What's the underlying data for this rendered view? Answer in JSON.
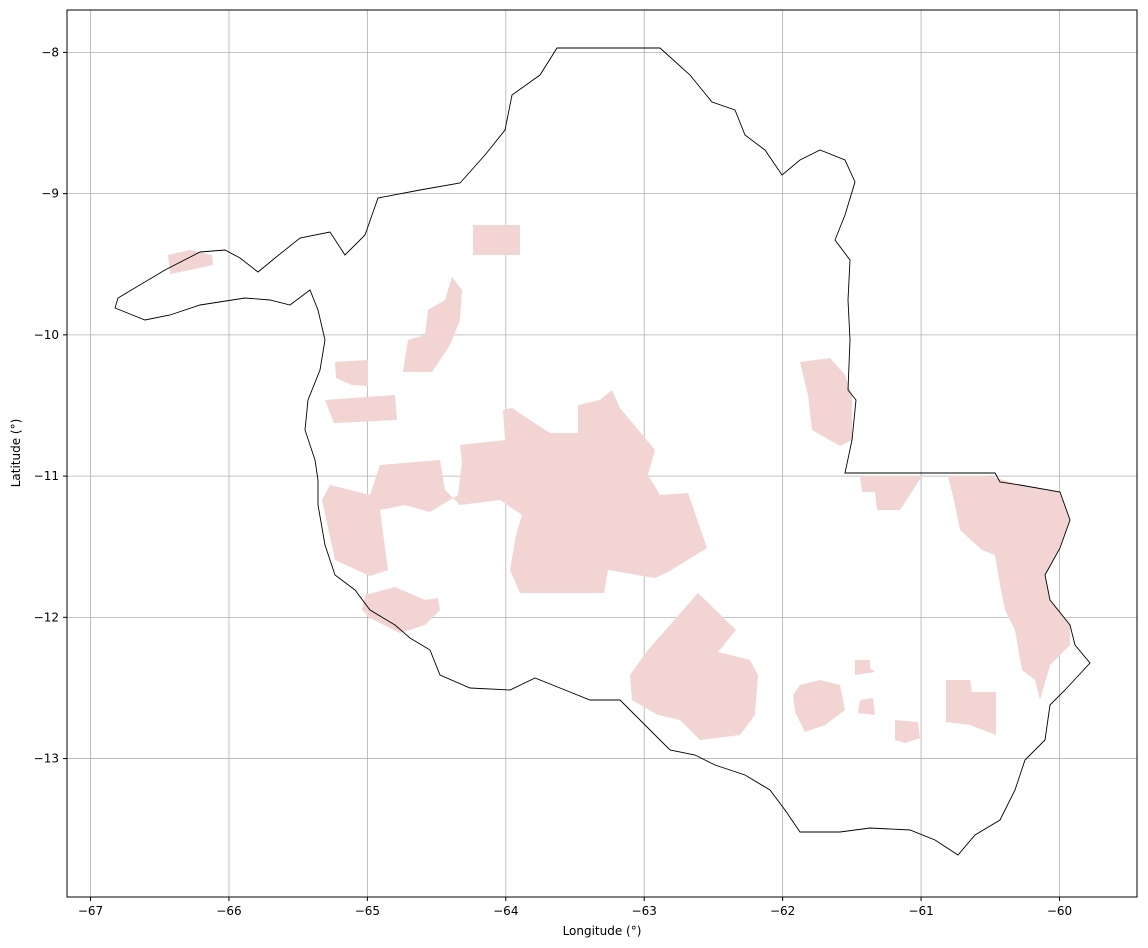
{
  "chart_data": {
    "type": "map",
    "xlabel": "Longitude (°)",
    "ylabel": "Latitude (°)",
    "xlim": [
      -67.17,
      -59.44
    ],
    "ylim": [
      -13.98,
      -7.7
    ],
    "xticks": [
      {
        "value": -67,
        "label": "−67"
      },
      {
        "value": -66,
        "label": "−66"
      },
      {
        "value": -65,
        "label": "−65"
      },
      {
        "value": -64,
        "label": "−64"
      },
      {
        "value": -63,
        "label": "−63"
      },
      {
        "value": -62,
        "label": "−62"
      },
      {
        "value": -61,
        "label": "−61"
      },
      {
        "value": -60,
        "label": "−60"
      }
    ],
    "yticks": [
      {
        "value": -13,
        "label": "−13"
      },
      {
        "value": -12,
        "label": "−12"
      },
      {
        "value": -11,
        "label": "−11"
      },
      {
        "value": -10,
        "label": "−10"
      },
      {
        "value": -9,
        "label": "−9"
      },
      {
        "value": -8,
        "label": "−8"
      }
    ],
    "grid": true
  }
}
